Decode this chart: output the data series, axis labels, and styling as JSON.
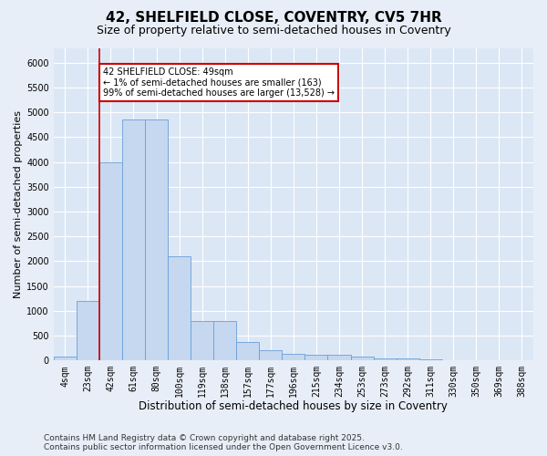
{
  "title_line1": "42, SHELFIELD CLOSE, COVENTRY, CV5 7HR",
  "title_line2": "Size of property relative to semi-detached houses in Coventry",
  "xlabel": "Distribution of semi-detached houses by size in Coventry",
  "ylabel": "Number of semi-detached properties",
  "categories": [
    "4sqm",
    "23sqm",
    "42sqm",
    "61sqm",
    "80sqm",
    "100sqm",
    "119sqm",
    "138sqm",
    "157sqm",
    "177sqm",
    "196sqm",
    "215sqm",
    "234sqm",
    "253sqm",
    "273sqm",
    "292sqm",
    "311sqm",
    "330sqm",
    "350sqm",
    "369sqm",
    "388sqm"
  ],
  "values": [
    80,
    1200,
    4000,
    4850,
    4850,
    2100,
    800,
    800,
    380,
    200,
    130,
    120,
    110,
    80,
    50,
    40,
    20,
    10,
    5,
    3,
    2
  ],
  "bar_color": "#c5d8f0",
  "bar_edge_color": "#6a9fd8",
  "annotation_text": "42 SHELFIELD CLOSE: 49sqm\n← 1% of semi-detached houses are smaller (163)\n99% of semi-detached houses are larger (13,528) →",
  "annotation_box_color": "white",
  "annotation_box_edge_color": "#cc0000",
  "vline_x": 1.5,
  "vline_color": "#cc0000",
  "ylim": [
    0,
    6300
  ],
  "yticks": [
    0,
    500,
    1000,
    1500,
    2000,
    2500,
    3000,
    3500,
    4000,
    4500,
    5000,
    5500,
    6000
  ],
  "background_color": "#e8eef7",
  "plot_background_color": "#dce7f5",
  "grid_color": "white",
  "footer_line1": "Contains HM Land Registry data © Crown copyright and database right 2025.",
  "footer_line2": "Contains public sector information licensed under the Open Government Licence v3.0.",
  "title_fontsize": 11,
  "subtitle_fontsize": 9,
  "xlabel_fontsize": 8.5,
  "ylabel_fontsize": 8,
  "tick_fontsize": 7,
  "annotation_fontsize": 7,
  "footer_fontsize": 6.5
}
